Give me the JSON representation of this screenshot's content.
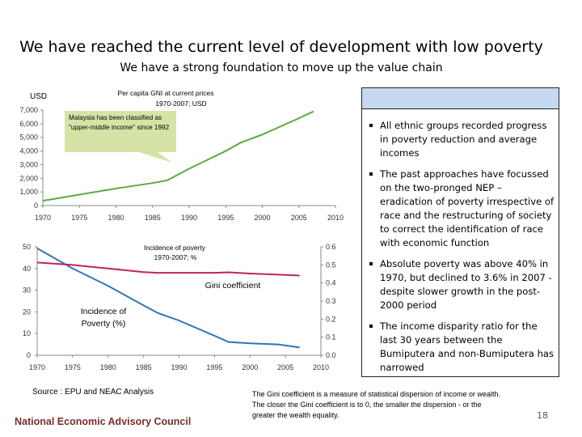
{
  "header": {
    "title": "We have reached the current level of development with low poverty",
    "subtitle": "We have a strong foundation to move up the value chain"
  },
  "chart_data": [
    {
      "type": "line",
      "title": "Per capita GNI at current prices",
      "subtitle": "1970-2007; USD",
      "ylabel": "USD",
      "xlim": [
        1970,
        2010
      ],
      "ylim": [
        0,
        7000
      ],
      "x_ticks": [
        "1970",
        "1975",
        "1980",
        "1985",
        "1990",
        "1995",
        "2000",
        "2005",
        "2010"
      ],
      "y_ticks": [
        "0",
        "1,000",
        "2,000",
        "3,000",
        "4,000",
        "5,000",
        "6,000",
        "7,000"
      ],
      "grid": false,
      "colors": {
        "line": "#5aab3e",
        "callout": "#d5e4a6"
      },
      "annotation": "Malaysia has been classified as \"upper-middle income\" since 1992",
      "series": [
        {
          "x": [
            1970,
            1975,
            1980,
            1985,
            1987,
            1990,
            1995,
            1997,
            2000,
            2005,
            2007
          ],
          "y": [
            350,
            800,
            1250,
            1650,
            1850,
            2700,
            4000,
            4600,
            5200,
            6400,
            6900
          ]
        }
      ]
    },
    {
      "type": "line",
      "title": "Incidence of poverty",
      "subtitle": "1970-2007; %",
      "xlim": [
        1970,
        2010
      ],
      "ylim": [
        0,
        50
      ],
      "y2lim": [
        0,
        0.6
      ],
      "x_ticks": [
        "1970",
        "1975",
        "1980",
        "1985",
        "1990",
        "1995",
        "2000",
        "2005",
        "2010"
      ],
      "y_ticks": [
        "0",
        "10",
        "20",
        "30",
        "40",
        "50"
      ],
      "y2_ticks": [
        "0.0",
        "0.1",
        "0.2",
        "0.3",
        "0.4",
        "0.5",
        "0.6"
      ],
      "grid": false,
      "series": [
        {
          "name": "Incidence of Poverty (%)",
          "axis": "left",
          "color": "#2f75b5",
          "x": [
            1970,
            1975,
            1980,
            1985,
            1987,
            1990,
            1995,
            1997,
            2000,
            2004,
            2007
          ],
          "y": [
            49.3,
            40,
            32,
            23,
            19.5,
            16,
            9,
            6.1,
            5.5,
            5,
            3.6
          ]
        },
        {
          "name": "Gini coefficient",
          "axis": "right",
          "color": "#c0264f",
          "x": [
            1970,
            1975,
            1980,
            1985,
            1987,
            1995,
            1997,
            2000,
            2004,
            2007
          ],
          "y": [
            0.513,
            0.5,
            0.48,
            0.46,
            0.456,
            0.456,
            0.459,
            0.452,
            0.446,
            0.441
          ]
        }
      ]
    }
  ],
  "panel": {
    "bullets": [
      "All ethnic groups recorded progress in poverty reduction and average incomes",
      "The past approaches have focussed on the two-pronged NEP – eradication of poverty irrespective of race and the restructuring of society to correct the identification of race with economic function",
      "Absolute poverty was above 40% in 1970, but declined to 3.6% in 2007 - despite slower growth in the post-2000 period",
      "The income disparity ratio for the last 30 years between the Bumiputera and non-Bumiputera has narrowed"
    ]
  },
  "footer": {
    "source": "Source : EPU and NEAC Analysis",
    "organization": "National Economic Advisory Council",
    "gini_note": "The Gini coefficient is a measure of statistical dispersion of income or wealth. The closer the Gini coefficient is to 0, the smaller the dispersion - or the greater the wealth equality.",
    "page_number": "18"
  }
}
